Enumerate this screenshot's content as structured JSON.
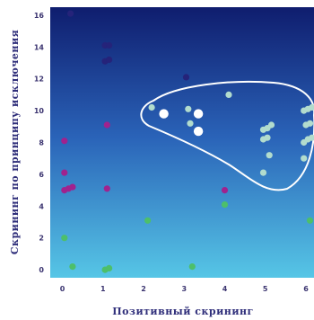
{
  "colors": {
    "plot_top": "#0f1d6e",
    "plot_mid": "#2a63b8",
    "plot_bottom": "#56c6e6",
    "axis_text": "#3b3470",
    "title_text": "#2f2e7a",
    "navy": "#25237a",
    "purple": "#5a3b98",
    "magenta": "#a0228e",
    "green": "#4dbf6a",
    "light_green": "#a5d6a0",
    "pale": "#b2dccd",
    "white": "#ffffff"
  },
  "chart_data": {
    "type": "scatter",
    "xlabel": "Позитивный скрининг",
    "ylabel": "Скрининг по принципу исключения",
    "xlim": [
      -0.3,
      6.2
    ],
    "ylim": [
      -0.5,
      16.5
    ],
    "x_ticks": [
      "0",
      "1",
      "2",
      "3",
      "4",
      "5",
      "6"
    ],
    "y_ticks": [
      "0",
      "2",
      "4",
      "6",
      "8",
      "10",
      "12",
      "14",
      "16"
    ],
    "grid": false,
    "legend": "none",
    "enclosing_region": {
      "shape": "closed curve",
      "outline_color": "white",
      "approx_x_range": [
        1.6,
        6.2
      ],
      "approx_y_range": [
        5.2,
        12.0
      ]
    },
    "groups": [
      {
        "color": "navy",
        "points": [
          [
            0.2,
            16.1
          ],
          [
            1.05,
            14.1
          ],
          [
            1.15,
            14.1
          ],
          [
            1.05,
            13.1
          ],
          [
            1.15,
            13.2
          ],
          [
            3.05,
            12.1
          ]
        ]
      },
      {
        "color": "magenta",
        "points": [
          [
            0.05,
            8.1
          ],
          [
            0.05,
            6.1
          ],
          [
            0.05,
            5.0
          ],
          [
            0.15,
            5.1
          ],
          [
            0.25,
            5.2
          ],
          [
            1.1,
            9.1
          ],
          [
            1.1,
            5.1
          ],
          [
            4.0,
            5.0
          ]
        ]
      },
      {
        "color": "green",
        "points": [
          [
            0.05,
            2.0
          ],
          [
            0.25,
            0.2
          ],
          [
            1.05,
            0.0
          ],
          [
            1.15,
            0.1
          ],
          [
            2.1,
            3.1
          ],
          [
            3.2,
            0.2
          ],
          [
            4.0,
            4.1
          ],
          [
            6.1,
            3.1
          ]
        ]
      },
      {
        "color": "pale",
        "points": [
          [
            2.2,
            10.2
          ],
          [
            3.1,
            10.1
          ],
          [
            3.15,
            9.2
          ],
          [
            4.1,
            11.0
          ],
          [
            4.95,
            8.8
          ],
          [
            5.05,
            8.9
          ],
          [
            5.15,
            9.1
          ],
          [
            4.95,
            8.2
          ],
          [
            5.05,
            8.3
          ],
          [
            5.1,
            7.2
          ],
          [
            4.95,
            6.1
          ],
          [
            5.95,
            8.0
          ],
          [
            6.05,
            8.2
          ],
          [
            6.15,
            8.3
          ],
          [
            6.0,
            9.1
          ],
          [
            6.1,
            9.2
          ],
          [
            5.95,
            10.0
          ],
          [
            6.05,
            10.1
          ],
          [
            6.15,
            10.2
          ],
          [
            5.95,
            7.0
          ]
        ]
      },
      {
        "color": "white",
        "points": [
          [
            2.5,
            9.8
          ],
          [
            3.35,
            9.8
          ],
          [
            3.35,
            8.7
          ]
        ]
      }
    ]
  }
}
